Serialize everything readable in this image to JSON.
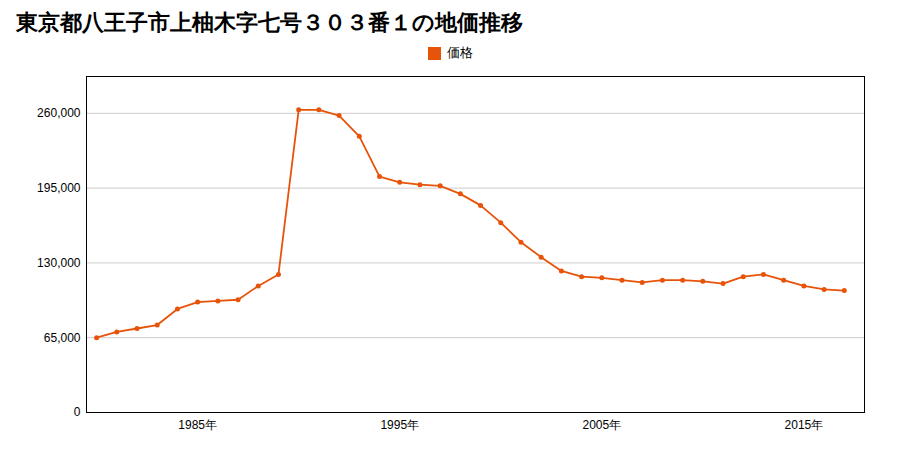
{
  "chart_data": {
    "type": "line",
    "title": "東京都八王子市上柚木字七号３０３番１の地価推移",
    "x": [
      1980,
      1981,
      1982,
      1983,
      1984,
      1985,
      1986,
      1987,
      1988,
      1989,
      1990,
      1991,
      1992,
      1993,
      1994,
      1995,
      1996,
      1997,
      1998,
      1999,
      2000,
      2001,
      2002,
      2003,
      2004,
      2005,
      2006,
      2007,
      2008,
      2009,
      2010,
      2011,
      2012,
      2013,
      2014,
      2015,
      2016,
      2017
    ],
    "series": [
      {
        "name": "価格",
        "color": "#e8530a",
        "marker": "circle",
        "values": [
          65000,
          70000,
          73000,
          76000,
          90000,
          96000,
          97000,
          98000,
          110000,
          120000,
          263000,
          263000,
          258000,
          240000,
          205000,
          200000,
          198000,
          197000,
          190000,
          180000,
          165000,
          148000,
          135000,
          123000,
          118000,
          117000,
          115000,
          113000,
          115000,
          115000,
          114000,
          112000,
          118000,
          120000,
          115000,
          110000,
          107000,
          106000
        ]
      }
    ],
    "xlim": [
      1979.5,
      2018
    ],
    "xticks": [
      {
        "value": 1985,
        "label": "1985年"
      },
      {
        "value": 1995,
        "label": "1995年"
      },
      {
        "value": 2005,
        "label": "2005年"
      },
      {
        "value": 2015,
        "label": "2015年"
      }
    ],
    "ylim": [
      0,
      292000
    ],
    "yticks": [
      0,
      {
        "value": 65000,
        "label": "65,000"
      },
      {
        "value": 130000,
        "label": "130,000"
      },
      {
        "value": 195000,
        "label": "195,000"
      },
      {
        "value": 260000,
        "label": "260,000"
      }
    ],
    "grid": true,
    "legend": "top"
  }
}
